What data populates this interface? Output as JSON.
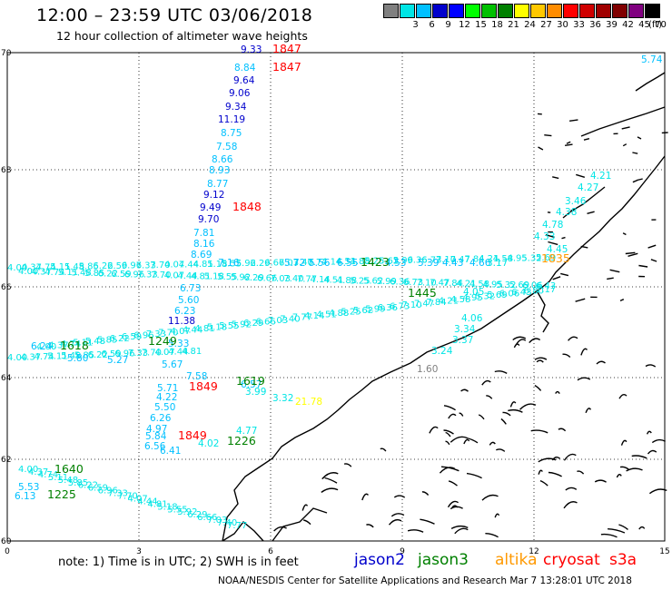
{
  "title": "12:00 – 23:59 UTC 03/06/2018",
  "subtitle": "12 hour collection of altimeter wave heights",
  "legend": {
    "unit": "(ft)",
    "swatches": [
      {
        "label": "",
        "color": "#808080"
      },
      {
        "label": "3",
        "color": "#00e5e5"
      },
      {
        "label": "6",
        "color": "#00c0ff"
      },
      {
        "label": "9",
        "color": "#0000cc"
      },
      {
        "label": "12",
        "color": "#0000ff"
      },
      {
        "label": "15",
        "color": "#00ff00"
      },
      {
        "label": "18",
        "color": "#00c000"
      },
      {
        "label": "21",
        "color": "#008000"
      },
      {
        "label": "24",
        "color": "#ffff00"
      },
      {
        "label": "27",
        "color": "#ffc800"
      },
      {
        "label": "30",
        "color": "#ff8c00"
      },
      {
        "label": "33",
        "color": "#ff0000"
      },
      {
        "label": "36",
        "color": "#d00000"
      },
      {
        "label": "39",
        "color": "#a00000"
      },
      {
        "label": "42",
        "color": "#800000"
      },
      {
        "label": "45",
        "color": "#800080"
      },
      {
        "label": "70",
        "color": "#000000"
      }
    ]
  },
  "axes": {
    "x_ticks": [
      "0",
      "3",
      "6",
      "9",
      "12",
      "15"
    ],
    "y_ticks": [
      "60",
      "62",
      "64",
      "66",
      "68",
      "70"
    ]
  },
  "note": "note: 1) Time is in UTC; 2) SWH is in feet",
  "satellites": [
    {
      "name": "jason2",
      "color": "#0000cc"
    },
    {
      "name": "jason3",
      "color": "#008000"
    },
    {
      "name": "altika",
      "color": "#ff9900"
    },
    {
      "name": "cryosat",
      "color": "#ff0000"
    },
    {
      "name": "s3a",
      "color": "#ff0000"
    }
  ],
  "credit": "NOAA/NESDIS Center for Satellite Applications and Research   Mar  7 13:28:01 UTC 2018",
  "time_labels": [
    {
      "text": "1847",
      "color": "#ff0000"
    },
    {
      "text": "1847",
      "color": "#ff0000"
    },
    {
      "text": "1848",
      "color": "#ff0000"
    },
    {
      "text": "1849",
      "color": "#ff0000"
    },
    {
      "text": "1849",
      "color": "#ff0000"
    },
    {
      "text": "1423",
      "color": "#008000"
    },
    {
      "text": "1445",
      "color": "#008000"
    },
    {
      "text": "1619",
      "color": "#008000"
    },
    {
      "text": "1618",
      "color": "#008000"
    },
    {
      "text": "1249",
      "color": "#008000"
    },
    {
      "text": "1226",
      "color": "#008000"
    },
    {
      "text": "1225",
      "color": "#008000"
    },
    {
      "text": "1640",
      "color": "#008000"
    },
    {
      "text": "1835",
      "color": "#ff9900"
    }
  ],
  "track_values": [
    {
      "text": "9.33",
      "color": "#0000cc"
    },
    {
      "text": "8.84",
      "color": "#00c0ff"
    },
    {
      "text": "9.64",
      "color": "#0000cc"
    },
    {
      "text": "9.06",
      "color": "#0000cc"
    },
    {
      "text": "9.34",
      "color": "#0000cc"
    },
    {
      "text": "11.19",
      "color": "#0000cc"
    },
    {
      "text": "8.75",
      "color": "#00c0ff"
    },
    {
      "text": "7.58",
      "color": "#00c0ff"
    },
    {
      "text": "8.66",
      "color": "#00c0ff"
    },
    {
      "text": "8.93",
      "color": "#00c0ff"
    },
    {
      "text": "8.77",
      "color": "#00c0ff"
    },
    {
      "text": "9.12",
      "color": "#0000cc"
    },
    {
      "text": "9.49",
      "color": "#0000cc"
    },
    {
      "text": "9.70",
      "color": "#0000cc"
    },
    {
      "text": "7.81",
      "color": "#00c0ff"
    },
    {
      "text": "8.16",
      "color": "#00c0ff"
    },
    {
      "text": "8.69",
      "color": "#00c0ff"
    },
    {
      "text": "6.73",
      "color": "#00c0ff"
    },
    {
      "text": "5.60",
      "color": "#00c0ff"
    },
    {
      "text": "6.23",
      "color": "#00c0ff"
    },
    {
      "text": "11.38",
      "color": "#0000cc"
    },
    {
      "text": "5.33",
      "color": "#00c0ff"
    },
    {
      "text": "5.67",
      "color": "#00c0ff"
    },
    {
      "text": "5.71",
      "color": "#00c0ff"
    },
    {
      "text": "4.22",
      "color": "#00c0ff"
    },
    {
      "text": "5.50",
      "color": "#00c0ff"
    },
    {
      "text": "6.26",
      "color": "#00c0ff"
    },
    {
      "text": "4.97",
      "color": "#00c0ff"
    },
    {
      "text": "5.84",
      "color": "#00c0ff"
    },
    {
      "text": "6.56",
      "color": "#00c0ff"
    },
    {
      "text": "5.72",
      "color": "#00c0ff"
    },
    {
      "text": "5.56",
      "color": "#00c0ff"
    },
    {
      "text": "6.55",
      "color": "#00c0ff"
    },
    {
      "text": "4.53",
      "color": "#00c0ff"
    },
    {
      "text": "5.39",
      "color": "#00c0ff"
    },
    {
      "text": "4.43",
      "color": "#00c0ff"
    },
    {
      "text": "4.66",
      "color": "#00c0ff"
    },
    {
      "text": "3.17",
      "color": "#00e5e5"
    },
    {
      "text": "4.05",
      "color": "#00e5e5"
    },
    {
      "text": "4.06",
      "color": "#00e5e5"
    },
    {
      "text": "3.34",
      "color": "#00e5e5"
    },
    {
      "text": "3.37",
      "color": "#00e5e5"
    },
    {
      "text": "3.24",
      "color": "#00e5e5"
    },
    {
      "text": "1.60",
      "color": "#808080"
    },
    {
      "text": "3.99",
      "color": "#00e5e5"
    },
    {
      "text": "3.32",
      "color": "#00e5e5"
    },
    {
      "text": "21.78",
      "color": "#ffff00"
    },
    {
      "text": "4.77",
      "color": "#00e5e5"
    },
    {
      "text": "4.02",
      "color": "#00e5e5"
    },
    {
      "text": "4.45",
      "color": "#00e5e5"
    },
    {
      "text": "4.33",
      "color": "#00e5e5"
    },
    {
      "text": "4.78",
      "color": "#00e5e5"
    },
    {
      "text": "4.38",
      "color": "#00e5e5"
    },
    {
      "text": "3.46",
      "color": "#00e5e5"
    },
    {
      "text": "4.27",
      "color": "#00e5e5"
    },
    {
      "text": "4.21",
      "color": "#00e5e5"
    },
    {
      "text": "5.74",
      "color": "#00c0ff"
    },
    {
      "text": "6.13",
      "color": "#00c0ff"
    },
    {
      "text": "5.53",
      "color": "#00c0ff"
    },
    {
      "text": "6.24",
      "color": "#00c0ff"
    },
    {
      "text": "5.80",
      "color": "#00c0ff"
    },
    {
      "text": "5.27",
      "color": "#00c0ff"
    },
    {
      "text": "7.58",
      "color": "#00c0ff"
    },
    {
      "text": "6.57",
      "color": "#00c0ff"
    },
    {
      "text": "7.16",
      "color": "#00c0ff"
    },
    {
      "text": "6.41",
      "color": "#00c0ff"
    },
    {
      "text": "4.57",
      "color": "#00e5e5"
    }
  ]
}
